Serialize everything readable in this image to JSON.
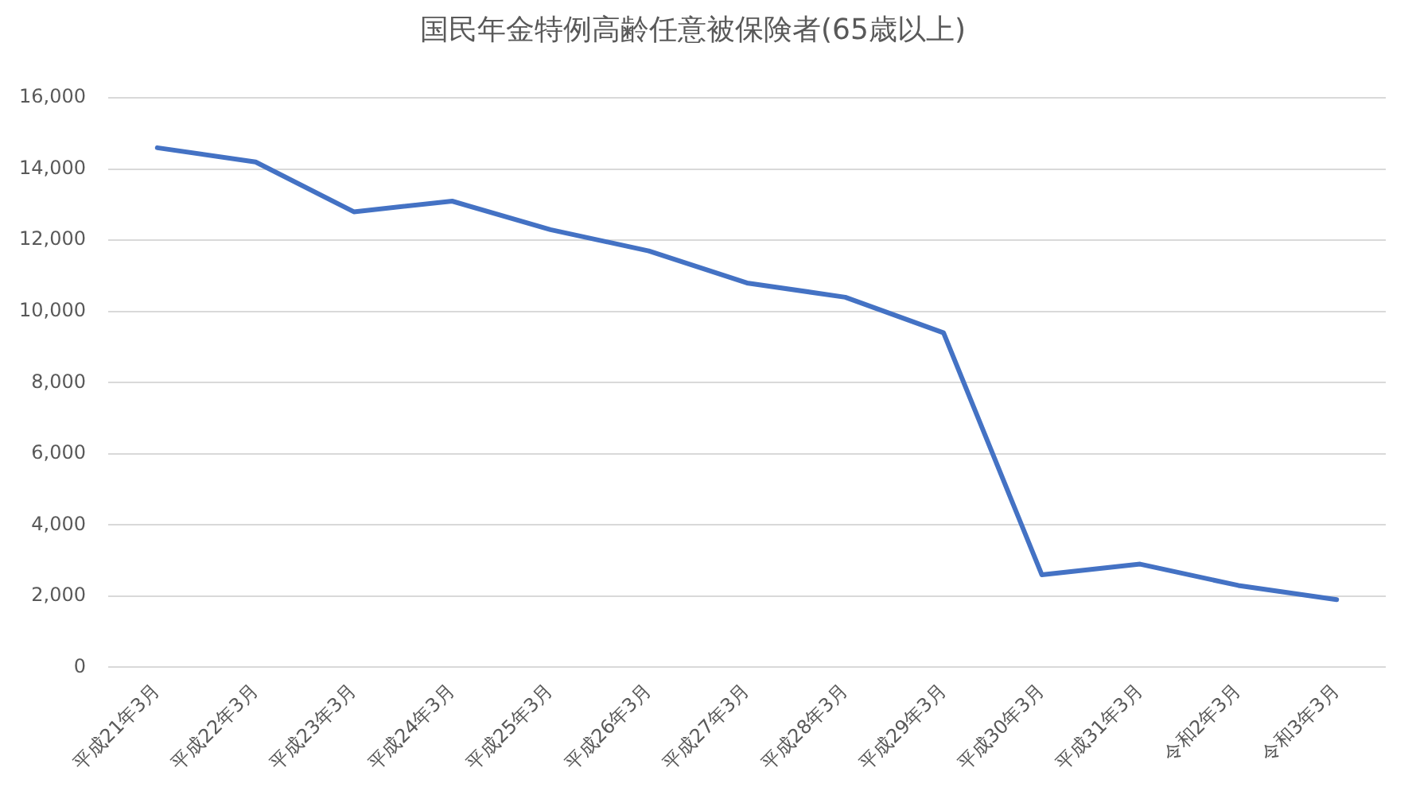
{
  "chart_data": {
    "type": "line",
    "title": "国民年金特例高齢任意被保険者(65歳以上)",
    "categories": [
      "平成21年3月",
      "平成22年3月",
      "平成23年3月",
      "平成24年3月",
      "平成25年3月",
      "平成26年3月",
      "平成27年3月",
      "平成28年3月",
      "平成29年3月",
      "平成30年3月",
      "平成31年3月",
      "令和2年3月",
      "令和3年3月"
    ],
    "values": [
      14600,
      14200,
      12800,
      13100,
      12300,
      11700,
      10800,
      10400,
      9400,
      2600,
      2900,
      2300,
      1900
    ],
    "color": "#4472c4",
    "ylim": [
      0,
      16000
    ],
    "yticks": [
      0,
      {
        "value": 2000,
        "label": "2,000"
      },
      {
        "value": 4000,
        "label": "4,000"
      },
      {
        "value": 6000,
        "label": "6,000"
      },
      {
        "value": 8000,
        "label": "8,000"
      },
      {
        "value": 10000,
        "label": "10,000"
      },
      {
        "value": 12000,
        "label": "12,000"
      },
      {
        "value": 14000,
        "label": "14,000"
      },
      {
        "value": 16000,
        "label": "16,000"
      }
    ],
    "grid": "y",
    "legend": false,
    "marker": "none"
  }
}
